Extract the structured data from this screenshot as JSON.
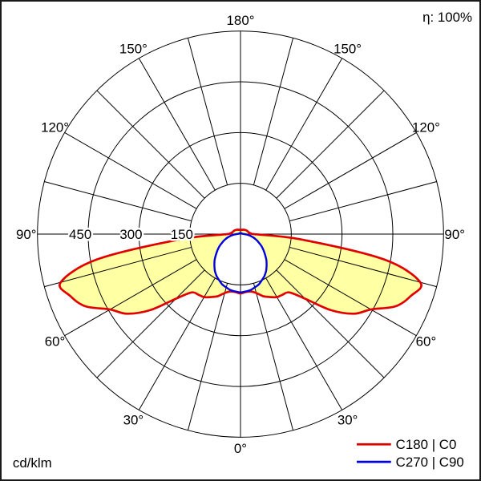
{
  "header": {
    "efficiency": "η: 100%"
  },
  "footer": {
    "unit": "cd/klm"
  },
  "legend": [
    {
      "key": "c180-c0",
      "label": "C180 | C0",
      "color": "#e10000"
    },
    {
      "key": "c270-c90",
      "label": "C270 | C90",
      "color": "#0000e0"
    }
  ],
  "chart_data": {
    "type": "polar-intensity",
    "unit": "cd/klm",
    "efficiency": "η: 100%",
    "grid_step_deg": 15,
    "radial_max": 600,
    "radial_ticks": [
      {
        "value": 150,
        "label": "150"
      },
      {
        "value": 300,
        "label": "300"
      },
      {
        "value": 450,
        "label": "450"
      }
    ],
    "angle_labels": [
      {
        "deg": 0,
        "label": "0°"
      },
      {
        "deg": 30,
        "label": "30°"
      },
      {
        "deg": 60,
        "label": "60°"
      },
      {
        "deg": 90,
        "label": "90°"
      },
      {
        "deg": 120,
        "label": "120°"
      },
      {
        "deg": 150,
        "label": "150°"
      },
      {
        "deg": 180,
        "label": "180°"
      }
    ],
    "gamma_deg": [
      0,
      5,
      10,
      15,
      20,
      25,
      30,
      35,
      40,
      45,
      50,
      55,
      60,
      65,
      70,
      75,
      80,
      85,
      90,
      95,
      100,
      105,
      110,
      115,
      120,
      125,
      130,
      135,
      140,
      145,
      150,
      155,
      160,
      165,
      170,
      175,
      180
    ],
    "series": [
      {
        "key": "c180-c0",
        "name": "C180 | C0",
        "color": "#e10000",
        "fill": "#ffffa3",
        "symmetric": true,
        "values": [
          175,
          172,
          172,
          180,
          195,
          205,
          215,
          218,
          225,
          270,
          350,
          410,
          445,
          505,
          535,
          550,
          430,
          180,
          40,
          30,
          26,
          24,
          23,
          22,
          21,
          20,
          19,
          18,
          17,
          16,
          15,
          14,
          14,
          13,
          13,
          12,
          12
        ]
      },
      {
        "key": "c270-c90",
        "name": "C270 | C90",
        "color": "#0000e0",
        "fill": "#ffffff",
        "symmetric": true,
        "values": [
          172,
          170,
          168,
          163,
          158,
          150,
          142,
          132,
          120,
          108,
          95,
          83,
          72,
          60,
          50,
          40,
          30,
          20,
          12,
          8,
          6,
          5,
          5,
          4,
          4,
          4,
          4,
          3,
          3,
          3,
          3,
          3,
          3,
          3,
          3,
          3,
          3
        ]
      }
    ]
  }
}
